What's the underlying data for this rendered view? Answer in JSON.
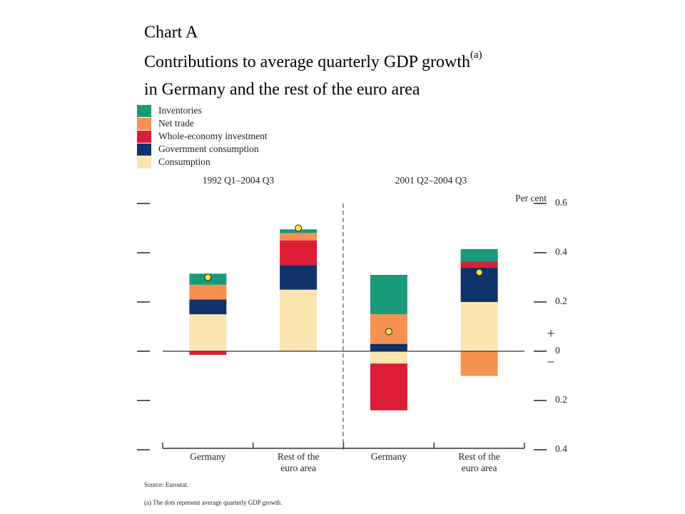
{
  "chart_data": {
    "type": "stacked_bar",
    "title": [
      "Chart A",
      "Contributions to average quarterly GDP growth",
      "in Germany and the rest of the euro area"
    ],
    "title_note": "(a)",
    "y_label": "Per cent",
    "sign_labels": [
      "+",
      "−"
    ],
    "groups": [
      "1992 Q1–2004 Q3",
      "2001 Q2–2004 Q3"
    ],
    "categories": [
      [
        "Germany"
      ],
      [
        "Rest of the",
        "euro area"
      ],
      [
        "Germany"
      ],
      [
        "Rest of the",
        "euro area"
      ]
    ],
    "series": [
      {
        "name": "Inventories",
        "color": "#1a9a7a",
        "values": [
          0.045,
          0.015,
          0.16,
          0.05
        ]
      },
      {
        "name": "Net trade",
        "color": "#f79150",
        "values": [
          0.06,
          0.03,
          0.12,
          -0.1
        ]
      },
      {
        "name": "Whole-economy investment",
        "color": "#dd1c35",
        "values": [
          -0.015,
          0.1,
          -0.19,
          0.025
        ]
      },
      {
        "name": "Government consumption",
        "color": "#10336b",
        "values": [
          0.06,
          0.1,
          0.03,
          0.14
        ]
      },
      {
        "name": "Consumption",
        "color": "#fde5b1",
        "values": [
          0.15,
          0.25,
          -0.05,
          0.2
        ]
      }
    ],
    "dots": {
      "color": "#f5e53c",
      "values": [
        0.3,
        0.5,
        0.08,
        0.32
      ]
    },
    "ylim": [
      -0.4,
      0.6
    ],
    "yticks": [
      {
        "value": -0.4,
        "label": "0.4"
      },
      {
        "value": -0.2,
        "label": "0.2"
      },
      0.0,
      0.2,
      0.4,
      0.6
    ],
    "source": "Source: Eurostat.",
    "footnote": "(a)  The dots represent average quarterly GDP growth."
  }
}
